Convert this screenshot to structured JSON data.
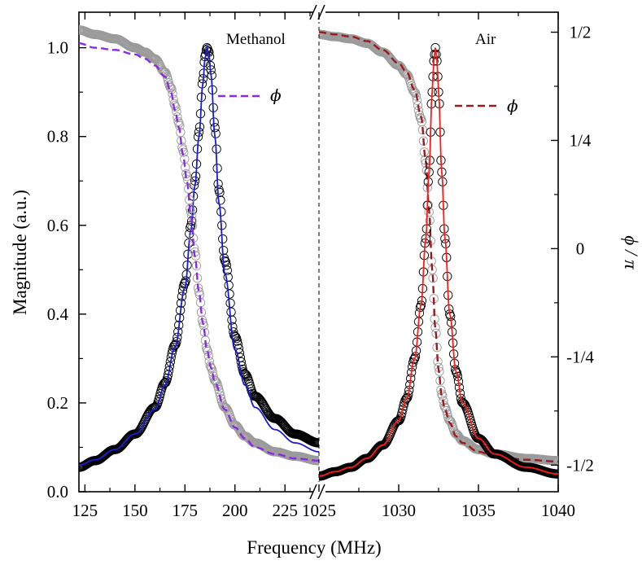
{
  "chart_data": [
    {
      "type": "line",
      "panel_label": "Methanol",
      "xlabel": "Frequency (MHz)",
      "ylabel": "Magnitude (a.u.)",
      "xlim": [
        122,
        242
      ],
      "ylim": [
        0,
        1.08
      ],
      "x_ticks": [
        125,
        150,
        175,
        200,
        225
      ],
      "x_tick_labels": [
        "125",
        "150",
        "175",
        "200",
        "225"
      ],
      "y_ticks": [
        0.0,
        0.2,
        0.4,
        0.6,
        0.8,
        1.0
      ],
      "y_tick_labels": [
        "0.0",
        "0.2",
        "0.4",
        "0.6",
        "0.8",
        "1.0"
      ],
      "legend": {
        "label": "ϕ",
        "placement": "top-right"
      },
      "resonance": {
        "peak_frequency": 186,
        "peak_magnitude": 1.0
      },
      "series": [
        {
          "role": "magnitude-data",
          "marker": "open-circle",
          "color": "#000000",
          "x": [
            122,
            130,
            140,
            150,
            160,
            165,
            170,
            175,
            178,
            180,
            182,
            184,
            185,
            186,
            187,
            188,
            190,
            192,
            195,
            200,
            205,
            210,
            220,
            230,
            242
          ],
          "y": [
            0.055,
            0.07,
            0.095,
            0.13,
            0.19,
            0.245,
            0.33,
            0.47,
            0.6,
            0.7,
            0.81,
            0.93,
            0.98,
            1.0,
            0.99,
            0.95,
            0.82,
            0.68,
            0.52,
            0.35,
            0.265,
            0.215,
            0.165,
            0.13,
            0.11
          ]
        },
        {
          "role": "magnitude-fit",
          "marker": "line",
          "color": "#1a1adb",
          "x": [
            122,
            130,
            140,
            150,
            160,
            165,
            170,
            175,
            178,
            180,
            182,
            184,
            185,
            186,
            187,
            188,
            190,
            192,
            195,
            200,
            205,
            210,
            220,
            230,
            242
          ],
          "y": [
            0.06,
            0.072,
            0.095,
            0.13,
            0.185,
            0.24,
            0.325,
            0.46,
            0.59,
            0.69,
            0.8,
            0.92,
            0.975,
            1.0,
            0.985,
            0.94,
            0.8,
            0.65,
            0.49,
            0.32,
            0.24,
            0.19,
            0.14,
            0.11,
            0.09
          ]
        },
        {
          "role": "phase-data",
          "marker": "open-circle",
          "color": "#9b9b9b",
          "x": [
            122,
            130,
            140,
            150,
            155,
            160,
            165,
            168,
            170,
            172,
            174,
            176,
            178,
            180,
            182,
            184,
            186,
            188,
            190,
            195,
            200,
            205,
            210,
            220,
            230,
            242
          ],
          "y": [
            1.04,
            1.03,
            1.02,
            1.0,
            0.99,
            0.975,
            0.945,
            0.91,
            0.87,
            0.83,
            0.77,
            0.71,
            0.63,
            0.54,
            0.45,
            0.38,
            0.32,
            0.28,
            0.25,
            0.19,
            0.15,
            0.125,
            0.11,
            0.09,
            0.08,
            0.07
          ]
        },
        {
          "role": "phase-fit",
          "name": "ϕ",
          "marker": "dashed-line",
          "color": "#8a2be2",
          "x": [
            122,
            130,
            140,
            150,
            155,
            160,
            165,
            168,
            170,
            172,
            174,
            176,
            178,
            180,
            182,
            184,
            186,
            188,
            190,
            195,
            200,
            205,
            210,
            220,
            230,
            242
          ],
          "y": [
            1.01,
            1.0,
            0.995,
            0.985,
            0.975,
            0.96,
            0.935,
            0.9,
            0.86,
            0.82,
            0.76,
            0.7,
            0.62,
            0.53,
            0.45,
            0.38,
            0.32,
            0.28,
            0.245,
            0.185,
            0.145,
            0.12,
            0.1,
            0.085,
            0.075,
            0.07
          ]
        }
      ]
    },
    {
      "type": "line",
      "panel_label": "Air",
      "xlabel": "Frequency (MHz)",
      "ylabel": "ϕ / π",
      "xlim": [
        1025,
        1040
      ],
      "ylim": [
        0,
        1.08
      ],
      "x_ticks": [
        1025,
        1030,
        1035,
        1040
      ],
      "x_tick_labels": [
        "1025",
        "1030",
        "1035",
        "1040"
      ],
      "right_axis": {
        "label": "ϕ / π",
        "ticks": [
          0.5,
          0.25,
          0,
          -0.25,
          -0.5
        ],
        "tick_labels": [
          "1/2",
          "1/4",
          "0",
          "-1/4",
          "-1/2"
        ]
      },
      "legend": {
        "label": "ϕ",
        "placement": "top-right"
      },
      "resonance": {
        "peak_frequency": 1032.3,
        "peak_magnitude": 1.0
      },
      "series": [
        {
          "role": "phase-data",
          "marker": "open-circle",
          "color": "#9b9b9b",
          "x": [
            1025,
            1026,
            1027,
            1028,
            1029,
            1030,
            1030.5,
            1031,
            1031.4,
            1031.7,
            1031.9,
            1032.1,
            1032.3,
            1032.5,
            1032.7,
            1032.9,
            1033.2,
            1033.6,
            1034,
            1035,
            1036,
            1038,
            1040
          ],
          "y": [
            1.03,
            1.025,
            1.02,
            1.01,
            0.99,
            0.96,
            0.94,
            0.9,
            0.84,
            0.74,
            0.63,
            0.5,
            0.37,
            0.28,
            0.22,
            0.19,
            0.16,
            0.13,
            0.115,
            0.095,
            0.085,
            0.075,
            0.07
          ]
        },
        {
          "role": "phase-fit",
          "name": "ϕ",
          "marker": "dashed-line",
          "color": "#9b1b1b",
          "x": [
            1025,
            1026,
            1027,
            1028,
            1029,
            1030,
            1030.5,
            1031,
            1031.4,
            1031.7,
            1031.9,
            1032.1,
            1032.3,
            1032.5,
            1032.7,
            1032.9,
            1033.2,
            1033.6,
            1034,
            1035,
            1036,
            1038,
            1040
          ],
          "y": [
            1.035,
            1.03,
            1.025,
            1.015,
            0.995,
            0.965,
            0.945,
            0.905,
            0.845,
            0.745,
            0.635,
            0.5,
            0.365,
            0.275,
            0.215,
            0.185,
            0.155,
            0.125,
            0.11,
            0.09,
            0.08,
            0.072,
            0.068
          ]
        },
        {
          "role": "magnitude-data",
          "marker": "open-circle",
          "color": "#000000",
          "x": [
            1025,
            1026,
            1027,
            1028,
            1029,
            1030,
            1030.5,
            1031,
            1031.4,
            1031.7,
            1031.9,
            1032.1,
            1032.2,
            1032.3,
            1032.4,
            1032.5,
            1032.7,
            1032.9,
            1033.2,
            1033.6,
            1034,
            1035,
            1036,
            1038,
            1040
          ],
          "y": [
            0.035,
            0.045,
            0.055,
            0.075,
            0.105,
            0.16,
            0.21,
            0.3,
            0.42,
            0.57,
            0.72,
            0.9,
            0.97,
            1.0,
            0.97,
            0.9,
            0.72,
            0.57,
            0.4,
            0.27,
            0.2,
            0.12,
            0.085,
            0.055,
            0.04
          ]
        },
        {
          "role": "magnitude-fit",
          "marker": "line",
          "color": "#ff1a1a",
          "x": [
            1025,
            1026,
            1027,
            1028,
            1029,
            1030,
            1030.5,
            1031,
            1031.4,
            1031.7,
            1031.9,
            1032.1,
            1032.2,
            1032.3,
            1032.4,
            1032.5,
            1032.7,
            1032.9,
            1033.2,
            1033.6,
            1034,
            1035,
            1036,
            1038,
            1040
          ],
          "y": [
            0.035,
            0.045,
            0.055,
            0.075,
            0.105,
            0.16,
            0.21,
            0.3,
            0.42,
            0.57,
            0.72,
            0.9,
            0.97,
            1.0,
            0.97,
            0.9,
            0.72,
            0.57,
            0.4,
            0.27,
            0.2,
            0.12,
            0.085,
            0.055,
            0.04
          ]
        }
      ]
    }
  ]
}
